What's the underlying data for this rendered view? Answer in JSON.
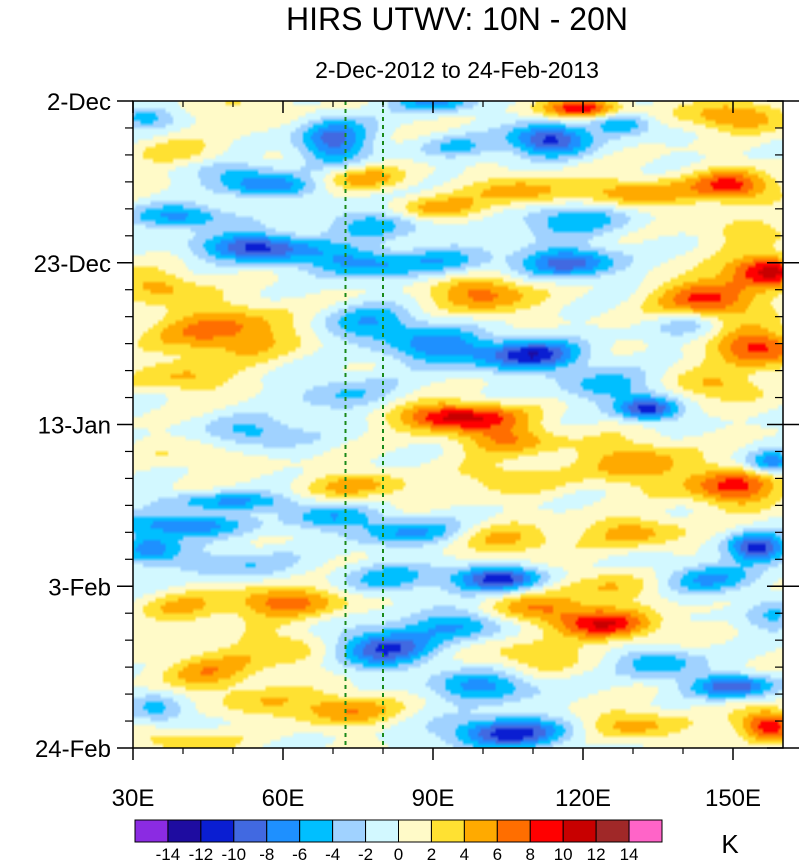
{
  "chart_data": {
    "type": "heatmap",
    "title": "HIRS UTWV: 10N - 20N",
    "subtitle": "2-Dec-2012 to 24-Feb-2013",
    "xlabel": "",
    "ylabel": "",
    "xlim": [
      30,
      160
    ],
    "x_ticks": [
      {
        "value": 30,
        "label": "30E"
      },
      {
        "value": 60,
        "label": "60E"
      },
      {
        "value": 90,
        "label": "90E"
      },
      {
        "value": 120,
        "label": "120E"
      },
      {
        "value": 150,
        "label": "150E"
      }
    ],
    "ylim_days": [
      0,
      84
    ],
    "y_ticks": [
      {
        "day": 0,
        "label": "2-Dec"
      },
      {
        "day": 21,
        "label": "23-Dec"
      },
      {
        "day": 42,
        "label": "13-Jan"
      },
      {
        "day": 63,
        "label": "3-Feb"
      },
      {
        "day": 84,
        "label": "24-Feb"
      }
    ],
    "reference_lines_lon": [
      72.5,
      80
    ],
    "colorbar": {
      "units": "K",
      "levels": [
        -14,
        -12,
        -10,
        -8,
        -6,
        -4,
        -2,
        0,
        2,
        4,
        6,
        8,
        10,
        12,
        14
      ],
      "labels": [
        "-14",
        "-12",
        "-10",
        "-8",
        "-6",
        "-4",
        "-2",
        "0",
        "2",
        "4",
        "6",
        "8",
        "10",
        "12",
        "14"
      ],
      "colors": [
        "#8b2be2",
        "#1e0ca0",
        "#0a1ed2",
        "#4169e1",
        "#1e90ff",
        "#00bfff",
        "#a0d2ff",
        "#d2f8ff",
        "#fffac8",
        "#ffe132",
        "#ffaa00",
        "#ff6e00",
        "#ff0000",
        "#c80000",
        "#a02828",
        "#ff64c8"
      ]
    },
    "features": [
      {
        "lon": 32,
        "day": 2,
        "amp": -5,
        "slon": 6,
        "sday": 1.4,
        "tilt": 0
      },
      {
        "lon": 55,
        "day": 1,
        "amp": 2,
        "slon": 12,
        "sday": 2.0,
        "tilt": 0
      },
      {
        "lon": 70,
        "day": 5,
        "amp": -9,
        "slon": 7,
        "sday": 3.0,
        "tilt": 0
      },
      {
        "lon": 90,
        "day": 0,
        "amp": -7,
        "slon": 8,
        "sday": 1.5,
        "tilt": 0
      },
      {
        "lon": 95,
        "day": 6,
        "amp": -4,
        "slon": 8,
        "sday": 1.5,
        "tilt": 0
      },
      {
        "lon": 120,
        "day": 1,
        "amp": 10,
        "slon": 8,
        "sday": 1.2,
        "tilt": 0
      },
      {
        "lon": 113,
        "day": 5,
        "amp": -11,
        "slon": 8,
        "sday": 2.0,
        "tilt": 0
      },
      {
        "lon": 128,
        "day": 3,
        "amp": -6,
        "slon": 6,
        "sday": 1.5,
        "tilt": 0
      },
      {
        "lon": 150,
        "day": 2,
        "amp": 7,
        "slon": 9,
        "sday": 1.8,
        "tilt": 0
      },
      {
        "lon": 40,
        "day": 7,
        "amp": 3,
        "slon": 10,
        "sday": 2.0,
        "tilt": 0
      },
      {
        "lon": 76,
        "day": 10,
        "amp": 5,
        "slon": 9,
        "sday": 1.5,
        "tilt": 0
      },
      {
        "lon": 57,
        "day": 11,
        "amp": -7,
        "slon": 10,
        "sday": 1.5,
        "tilt": 0.4
      },
      {
        "lon": 50,
        "day": 9,
        "amp": -4,
        "slon": 10,
        "sday": 1.5,
        "tilt": 0
      },
      {
        "lon": 130,
        "day": 12,
        "amp": 6,
        "slon": 12,
        "sday": 2.0,
        "tilt": 0
      },
      {
        "lon": 150,
        "day": 11,
        "amp": 9,
        "slon": 8,
        "sday": 2.0,
        "tilt": 0
      },
      {
        "lon": 108,
        "day": 12,
        "amp": 6,
        "slon": 10,
        "sday": 2.0,
        "tilt": 0
      },
      {
        "lon": 40,
        "day": 15,
        "amp": -7,
        "slon": 10,
        "sday": 1.5,
        "tilt": 0
      },
      {
        "lon": 78,
        "day": 16,
        "amp": -5,
        "slon": 10,
        "sday": 2.0,
        "tilt": 0
      },
      {
        "lon": 117,
        "day": 15,
        "amp": -6,
        "slon": 12,
        "sday": 2.5,
        "tilt": 0
      },
      {
        "lon": 92,
        "day": 14,
        "amp": 5,
        "slon": 10,
        "sday": 1.5,
        "tilt": 0
      },
      {
        "lon": 153,
        "day": 17,
        "amp": 3,
        "slon": 10,
        "sday": 2.0,
        "tilt": 0
      },
      {
        "lon": 55,
        "day": 19,
        "amp": -11,
        "slon": 11,
        "sday": 1.8,
        "tilt": 0
      },
      {
        "lon": 75,
        "day": 21,
        "amp": -7,
        "slon": 10,
        "sday": 2.0,
        "tilt": 0
      },
      {
        "lon": 93,
        "day": 21,
        "amp": -5,
        "slon": 10,
        "sday": 2.0,
        "tilt": 0
      },
      {
        "lon": 117,
        "day": 21,
        "amp": -9,
        "slon": 10,
        "sday": 2.0,
        "tilt": 0
      },
      {
        "lon": 157,
        "day": 22,
        "amp": 11,
        "slon": 8,
        "sday": 2.0,
        "tilt": 0
      },
      {
        "lon": 145,
        "day": 26,
        "amp": 9,
        "slon": 10,
        "sday": 3.0,
        "tilt": 0
      },
      {
        "lon": 100,
        "day": 25,
        "amp": 7,
        "slon": 10,
        "sday": 2.5,
        "tilt": 0
      },
      {
        "lon": 35,
        "day": 24,
        "amp": 5,
        "slon": 8,
        "sday": 2.0,
        "tilt": 0
      },
      {
        "lon": 48,
        "day": 30,
        "amp": 7,
        "slon": 14,
        "sday": 3.5,
        "tilt": 0
      },
      {
        "lon": 78,
        "day": 29,
        "amp": -6,
        "slon": 10,
        "sday": 2.5,
        "tilt": 0
      },
      {
        "lon": 110,
        "day": 33,
        "amp": -11,
        "slon": 10,
        "sday": 2.0,
        "tilt": 0
      },
      {
        "lon": 92,
        "day": 32,
        "amp": -7,
        "slon": 10,
        "sday": 2.5,
        "tilt": 0
      },
      {
        "lon": 155,
        "day": 32,
        "amp": 9,
        "slon": 9,
        "sday": 2.5,
        "tilt": 0
      },
      {
        "lon": 142,
        "day": 29,
        "amp": -5,
        "slon": 8,
        "sday": 2.0,
        "tilt": 0
      },
      {
        "lon": 40,
        "day": 36,
        "amp": 4,
        "slon": 10,
        "sday": 2.0,
        "tilt": 0
      },
      {
        "lon": 72,
        "day": 38,
        "amp": -4,
        "slon": 10,
        "sday": 2.5,
        "tilt": 0
      },
      {
        "lon": 125,
        "day": 37,
        "amp": -5,
        "slon": 10,
        "sday": 2.0,
        "tilt": 0
      },
      {
        "lon": 133,
        "day": 40,
        "amp": -11,
        "slon": 6,
        "sday": 1.5,
        "tilt": 0
      },
      {
        "lon": 147,
        "day": 37,
        "amp": 5,
        "slon": 8,
        "sday": 2.0,
        "tilt": 0
      },
      {
        "lon": 95,
        "day": 41,
        "amp": 11,
        "slon": 12,
        "sday": 1.8,
        "tilt": 0
      },
      {
        "lon": 105,
        "day": 44,
        "amp": 6,
        "slon": 10,
        "sday": 2.0,
        "tilt": 0
      },
      {
        "lon": 55,
        "day": 43,
        "amp": -5,
        "slon": 10,
        "sday": 2.0,
        "tilt": 0
      },
      {
        "lon": 42,
        "day": 46,
        "amp": 2,
        "slon": 10,
        "sday": 2.0,
        "tilt": 0
      },
      {
        "lon": 158,
        "day": 47,
        "amp": -8,
        "slon": 5,
        "sday": 1.5,
        "tilt": 0
      },
      {
        "lon": 150,
        "day": 50,
        "amp": 9,
        "slon": 9,
        "sday": 2.5,
        "tilt": 0
      },
      {
        "lon": 130,
        "day": 47,
        "amp": 6,
        "slon": 10,
        "sday": 3.0,
        "tilt": 0
      },
      {
        "lon": 75,
        "day": 50,
        "amp": 5,
        "slon": 10,
        "sday": 1.8,
        "tilt": 0
      },
      {
        "lon": 105,
        "day": 49,
        "amp": 4,
        "slon": 10,
        "sday": 2.0,
        "tilt": 0
      },
      {
        "lon": 50,
        "day": 52,
        "amp": -6,
        "slon": 14,
        "sday": 1.2,
        "tilt": 0.3
      },
      {
        "lon": 40,
        "day": 55,
        "amp": -8,
        "slon": 12,
        "sday": 1.5,
        "tilt": 0.3
      },
      {
        "lon": 85,
        "day": 56,
        "amp": -6,
        "slon": 12,
        "sday": 1.8,
        "tilt": 0
      },
      {
        "lon": 70,
        "day": 54,
        "amp": -5,
        "slon": 10,
        "sday": 1.5,
        "tilt": 0
      },
      {
        "lon": 155,
        "day": 58,
        "amp": -11,
        "slon": 6,
        "sday": 1.8,
        "tilt": 0
      },
      {
        "lon": 105,
        "day": 57,
        "amp": 5,
        "slon": 10,
        "sday": 2.0,
        "tilt": 0
      },
      {
        "lon": 130,
        "day": 56,
        "amp": 5,
        "slon": 10,
        "sday": 2.0,
        "tilt": 0
      },
      {
        "lon": 33,
        "day": 58,
        "amp": -7,
        "slon": 6,
        "sday": 2.0,
        "tilt": 0
      },
      {
        "lon": 50,
        "day": 60,
        "amp": -4,
        "slon": 12,
        "sday": 2.0,
        "tilt": 0
      },
      {
        "lon": 103,
        "day": 62,
        "amp": -11,
        "slon": 9,
        "sday": 1.6,
        "tilt": 0
      },
      {
        "lon": 82,
        "day": 62,
        "amp": -5,
        "slon": 10,
        "sday": 2.0,
        "tilt": 0
      },
      {
        "lon": 125,
        "day": 63,
        "amp": 4,
        "slon": 10,
        "sday": 2.0,
        "tilt": 0
      },
      {
        "lon": 145,
        "day": 62,
        "amp": -6,
        "slon": 10,
        "sday": 2.0,
        "tilt": 0
      },
      {
        "lon": 60,
        "day": 65,
        "amp": 7,
        "slon": 12,
        "sday": 2.0,
        "tilt": 0
      },
      {
        "lon": 40,
        "day": 66,
        "amp": 4,
        "slon": 8,
        "sday": 2.0,
        "tilt": 0
      },
      {
        "lon": 125,
        "day": 68,
        "amp": 9,
        "slon": 10,
        "sday": 2.0,
        "tilt": 0
      },
      {
        "lon": 112,
        "day": 66,
        "amp": 6,
        "slon": 10,
        "sday": 2.0,
        "tilt": 0
      },
      {
        "lon": 158,
        "day": 67,
        "amp": -4,
        "slon": 6,
        "sday": 2.0,
        "tilt": 0
      },
      {
        "lon": 80,
        "day": 71,
        "amp": -10,
        "slon": 10,
        "sday": 2.5,
        "tilt": 0
      },
      {
        "lon": 95,
        "day": 68,
        "amp": -6,
        "slon": 10,
        "sday": 2.0,
        "tilt": 0
      },
      {
        "lon": 45,
        "day": 74,
        "amp": 5,
        "slon": 10,
        "sday": 2.5,
        "tilt": 0
      },
      {
        "lon": 60,
        "day": 71,
        "amp": 4,
        "slon": 10,
        "sday": 2.5,
        "tilt": 0
      },
      {
        "lon": 135,
        "day": 73,
        "amp": -6,
        "slon": 8,
        "sday": 2.0,
        "tilt": 0
      },
      {
        "lon": 150,
        "day": 76,
        "amp": -10,
        "slon": 8,
        "sday": 1.5,
        "tilt": 0
      },
      {
        "lon": 110,
        "day": 72,
        "amp": 4,
        "slon": 10,
        "sday": 2.0,
        "tilt": 0
      },
      {
        "lon": 100,
        "day": 76,
        "amp": -7,
        "slon": 10,
        "sday": 2.0,
        "tilt": 0
      },
      {
        "lon": 72,
        "day": 79,
        "amp": 6,
        "slon": 10,
        "sday": 2.0,
        "tilt": 0
      },
      {
        "lon": 55,
        "day": 78,
        "amp": 3,
        "slon": 10,
        "sday": 2.0,
        "tilt": 0
      },
      {
        "lon": 35,
        "day": 79,
        "amp": -5,
        "slon": 6,
        "sday": 2.0,
        "tilt": 0
      },
      {
        "lon": 105,
        "day": 82,
        "amp": -11,
        "slon": 12,
        "sday": 2.0,
        "tilt": 0
      },
      {
        "lon": 157,
        "day": 81,
        "amp": 10,
        "slon": 6,
        "sday": 2.0,
        "tilt": 0
      },
      {
        "lon": 130,
        "day": 81,
        "amp": 5,
        "slon": 10,
        "sday": 2.0,
        "tilt": 0
      },
      {
        "lon": 40,
        "day": 83,
        "amp": 4,
        "slon": 10,
        "sday": 1.5,
        "tilt": 0
      }
    ]
  }
}
